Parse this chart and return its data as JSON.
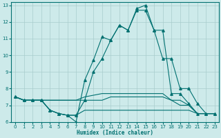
{
  "xlabel": "Humidex (Indice chaleur)",
  "background_color": "#cdeaea",
  "grid_color": "#a8cccc",
  "line_color": "#007070",
  "xlim": [
    -0.5,
    23.5
  ],
  "ylim": [
    6,
    13.2
  ],
  "xticks": [
    0,
    1,
    2,
    3,
    4,
    5,
    6,
    7,
    8,
    9,
    10,
    11,
    12,
    13,
    14,
    15,
    16,
    17,
    18,
    19,
    20,
    21,
    22,
    23
  ],
  "yticks": [
    6,
    7,
    8,
    9,
    10,
    11,
    12,
    13
  ],
  "curve_main_x": [
    0,
    1,
    2,
    3,
    4,
    5,
    6,
    7,
    8,
    9,
    10,
    11,
    12,
    13,
    14,
    15,
    16,
    17,
    18,
    19,
    20,
    21,
    22,
    23
  ],
  "curve_main_y": [
    7.5,
    7.3,
    7.3,
    7.3,
    6.7,
    6.5,
    6.4,
    6.0,
    8.5,
    9.7,
    11.1,
    10.9,
    11.8,
    11.5,
    12.8,
    13.0,
    11.5,
    11.5,
    7.7,
    7.7,
    7.1,
    6.5,
    6.5,
    6.5
  ],
  "curve_upper_x": [
    0,
    1,
    2,
    3,
    4,
    5,
    6,
    7,
    8,
    9,
    10,
    11,
    12,
    13,
    14,
    15,
    16,
    17,
    18,
    19,
    20,
    21,
    22,
    23
  ],
  "curve_upper_y": [
    7.5,
    7.3,
    7.3,
    7.3,
    6.7,
    6.5,
    6.4,
    6.4,
    7.3,
    9,
    9.8,
    10.9,
    11.8,
    11.5,
    12.7,
    12.7,
    11.5,
    9.8,
    9.8,
    8.0,
    8.0,
    7.1,
    6.5,
    6.5
  ],
  "curve_flat1_x": [
    0,
    1,
    2,
    3,
    4,
    5,
    6,
    7,
    8,
    9,
    10,
    11,
    12,
    13,
    14,
    15,
    16,
    17,
    18,
    19,
    20,
    21,
    22,
    23
  ],
  "curve_flat1_y": [
    7.5,
    7.3,
    7.3,
    7.3,
    7.3,
    7.3,
    7.3,
    7.3,
    7.5,
    7.6,
    7.7,
    7.7,
    7.7,
    7.7,
    7.7,
    7.7,
    7.7,
    7.7,
    7.3,
    7.3,
    7.0,
    6.5,
    6.5,
    6.5
  ],
  "curve_flat2_x": [
    0,
    1,
    2,
    3,
    4,
    5,
    6,
    7,
    8,
    9,
    10,
    11,
    12,
    13,
    14,
    15,
    16,
    17,
    18,
    19,
    20,
    21,
    22,
    23
  ],
  "curve_flat2_y": [
    7.5,
    7.3,
    7.3,
    7.3,
    7.3,
    7.3,
    7.3,
    7.3,
    7.3,
    7.3,
    7.3,
    7.5,
    7.5,
    7.5,
    7.5,
    7.5,
    7.5,
    7.5,
    7.3,
    7.0,
    7.0,
    6.5,
    6.5,
    6.5
  ],
  "curve_low_x": [
    0,
    1,
    2,
    3,
    4,
    5,
    6,
    7,
    8,
    9,
    10,
    11,
    12,
    13,
    14,
    15,
    16,
    17,
    18,
    19,
    20,
    21,
    22,
    23
  ],
  "curve_low_y": [
    7.5,
    7.3,
    7.3,
    7.3,
    6.7,
    6.5,
    6.4,
    6.4,
    6.7,
    6.7,
    6.7,
    6.7,
    6.7,
    6.7,
    6.7,
    6.7,
    6.7,
    6.7,
    6.7,
    6.7,
    6.7,
    6.5,
    6.5,
    6.5
  ]
}
